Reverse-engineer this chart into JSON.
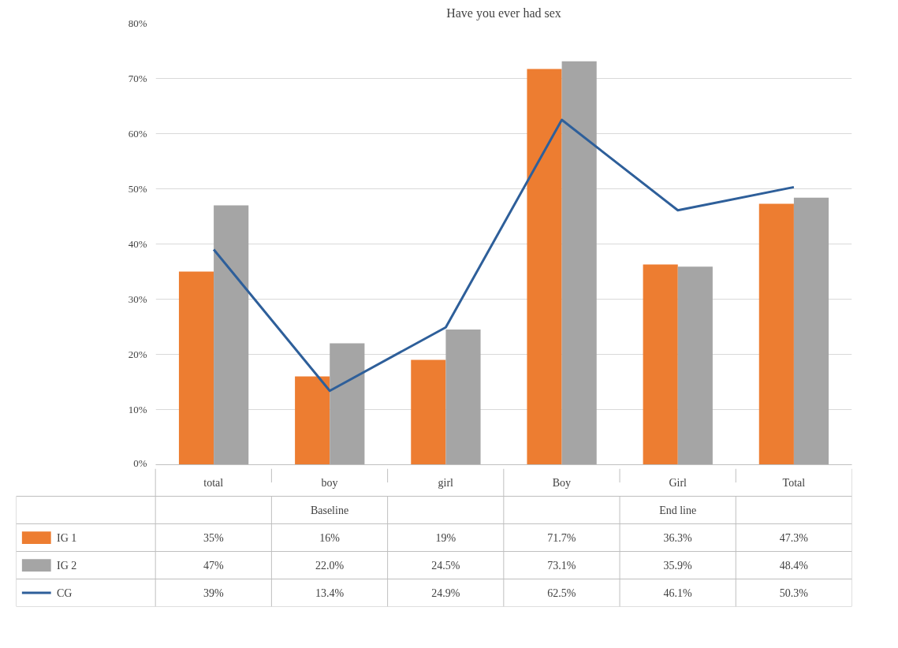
{
  "chart_data": {
    "type": "bar",
    "title": "Have you ever had sex",
    "categories": [
      "total",
      "boy",
      "girl",
      "Boy",
      "Girl",
      "Total"
    ],
    "annotations": [
      "Baseline",
      "End line"
    ],
    "series": [
      {
        "name": "IG 1",
        "color": "#ed7d31",
        "values": [
          35,
          16,
          19,
          71.7,
          36.3,
          47.3
        ],
        "value_labels": [
          "35%",
          "16%",
          "19%",
          "71.7%",
          "36.3%",
          "47.3%"
        ]
      },
      {
        "name": "IG 2",
        "color": "#a5a5a5",
        "values": [
          47,
          22.0,
          24.5,
          73.1,
          35.9,
          48.4
        ],
        "value_labels": [
          "47%",
          "22.0%",
          "24.5%",
          "73.1%",
          "35.9%",
          "48.4%"
        ]
      },
      {
        "name": "CG",
        "type": "line",
        "color": "#2e5f9a",
        "values": [
          39,
          13.4,
          24.9,
          62.5,
          46.1,
          50.3
        ],
        "value_labels": [
          "39%",
          "13.4%",
          "24.9%",
          "62.5%",
          "46.1%",
          "50.3%"
        ]
      }
    ],
    "ylim": [
      0,
      80
    ],
    "yticks": [
      {
        "value": 0,
        "label": "0%"
      },
      {
        "value": 10,
        "label": "10%"
      },
      {
        "value": 20,
        "label": "20%"
      },
      {
        "value": 30,
        "label": "30%"
      },
      {
        "value": 40,
        "label": "40%"
      },
      {
        "value": 50,
        "label": "50%"
      },
      {
        "value": 60,
        "label": "60%"
      },
      {
        "value": 70,
        "label": "70%"
      },
      {
        "value": 80,
        "label": "80%"
      }
    ],
    "grid": "y",
    "legend": "bottom",
    "tick_labels": "y"
  }
}
